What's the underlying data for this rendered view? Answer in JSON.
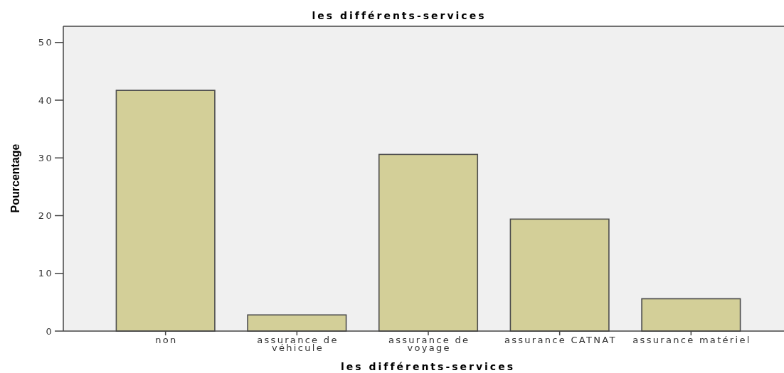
{
  "chart_data": {
    "type": "bar",
    "title": "les différents-services",
    "xlabel": "les différents-services",
    "ylabel": "Pourcentage",
    "categories": [
      "non",
      "assurance de véhicule",
      "assurance de voyage",
      "assurance CATNAT",
      "assurance matériel"
    ],
    "values": [
      41.7,
      2.8,
      30.6,
      19.4,
      5.6
    ],
    "color": "#d3cf98",
    "ylim": [
      0,
      52.8
    ],
    "yticks": [
      0,
      10,
      20,
      30,
      40,
      50
    ]
  }
}
